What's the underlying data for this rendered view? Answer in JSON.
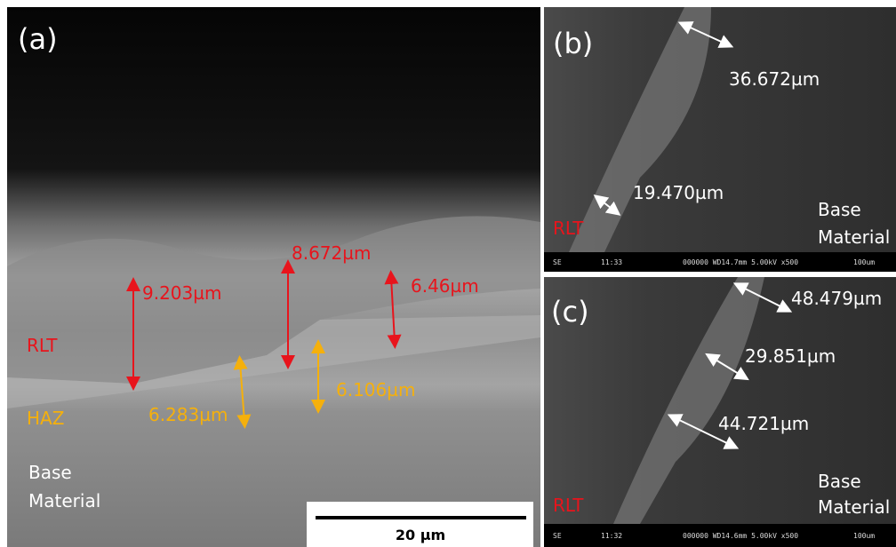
{
  "panel_a": {
    "label": "(a)",
    "measurements": {
      "rlt": [
        "8.672µm",
        "9.203µm",
        "6.46µm"
      ],
      "haz": [
        "6.283µm",
        "6.106µm"
      ]
    },
    "regions": {
      "rlt": "RLT",
      "haz": "HAZ",
      "base": [
        "Base",
        "Material"
      ]
    },
    "scale_bar": "20 µm"
  },
  "panel_b": {
    "label": "(b)",
    "measurements": [
      "36.672µm",
      "19.470µm"
    ],
    "regions": {
      "rlt": "RLT",
      "base": [
        "Base",
        "Material"
      ]
    },
    "info_bar": [
      "SE",
      "11:33",
      "000000 WD14.7mm 5.00kV x500",
      "100um"
    ]
  },
  "panel_c": {
    "label": "(c)",
    "measurements": [
      "48.479µm",
      "29.851µm",
      "44.721µm"
    ],
    "regions": {
      "rlt": "RLT",
      "base": [
        "Base",
        "Material"
      ]
    },
    "info_bar": [
      "SE",
      "11:32",
      "000000 WD14.6mm 5.00kV x500",
      "100um"
    ]
  }
}
